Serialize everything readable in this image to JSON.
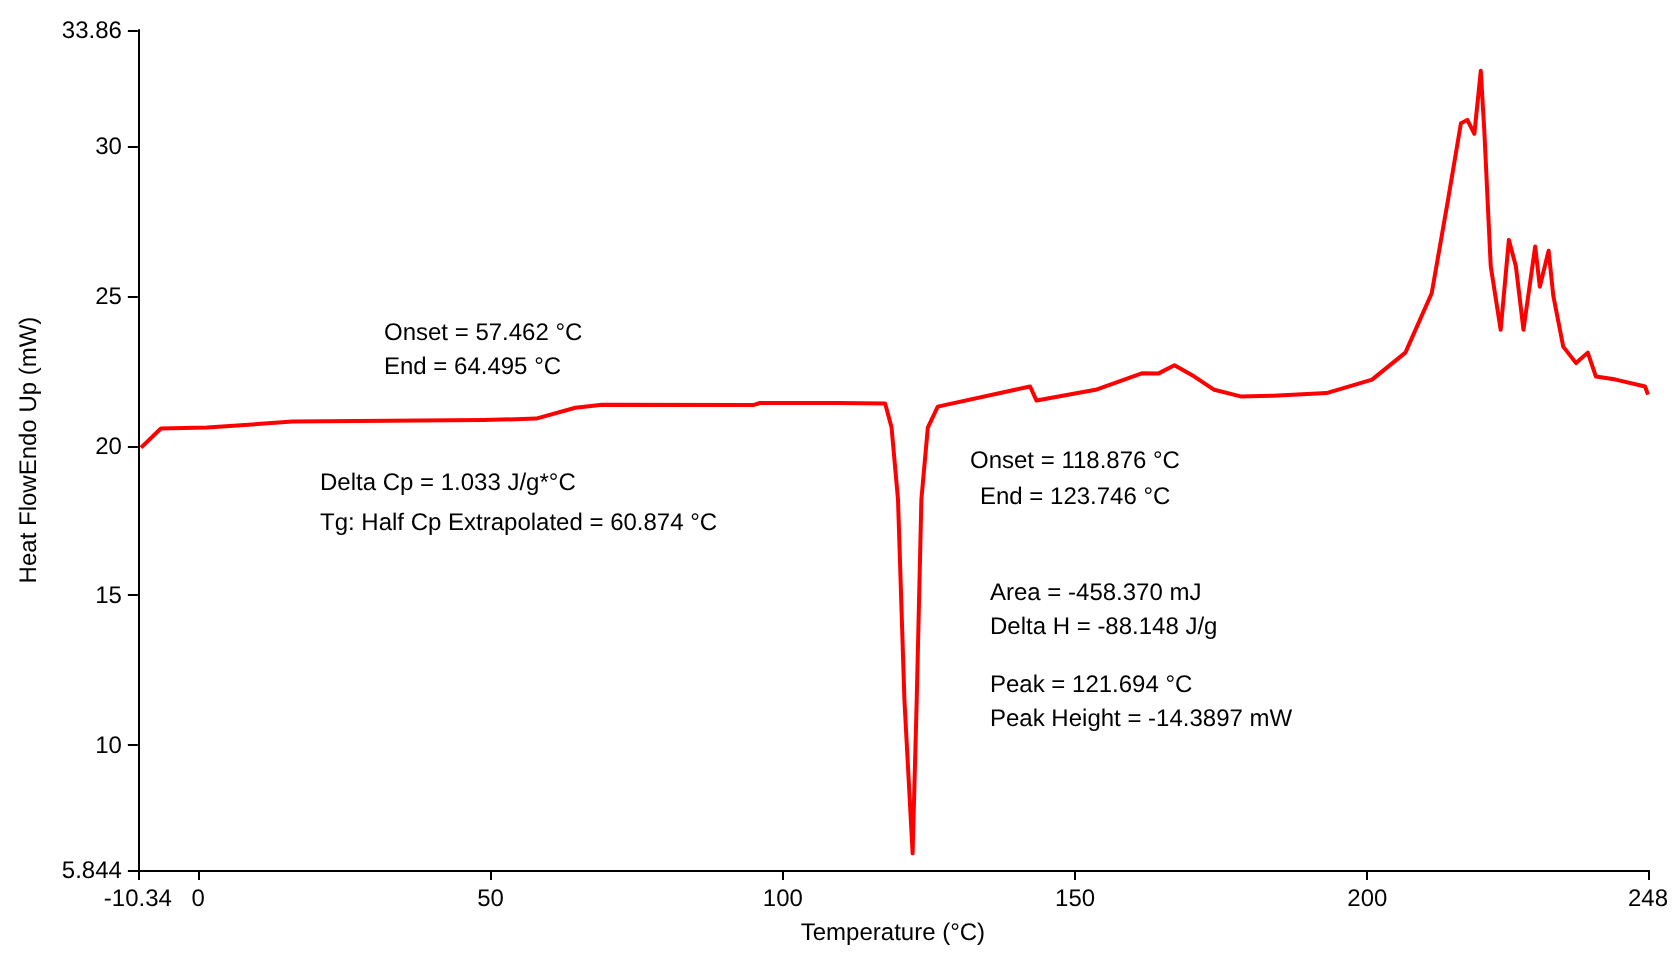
{
  "chart_data": {
    "type": "line",
    "xlabel": "Temperature (°C)",
    "ylabel": "Heat FlowEndo Up (mW)",
    "xlim": [
      -10.34,
      248
    ],
    "xticks": [
      -10.34,
      0,
      50,
      100,
      150,
      200,
      248
    ],
    "ylim": [
      5.844,
      33.86
    ],
    "yticks": [
      5.844,
      10,
      15,
      20,
      25,
      30,
      33.86
    ],
    "grid": false,
    "marker": "none",
    "line_style": "solid",
    "series": [
      {
        "color": "#ff0000",
        "x": [
          -9.8,
          -6.4,
          1.5,
          16.1,
          48.8,
          57.8,
          64.5,
          69.1,
          94.9,
          96.1,
          109.6,
          117.5,
          118.6,
          119.7,
          120.8,
          122.2,
          122.9,
          123.7,
          124.8,
          126.5,
          142.3,
          143.4,
          153.5,
          161.4,
          164.2,
          167.0,
          170.4,
          173.8,
          178.3,
          183.9,
          193.0,
          200.8,
          206.5,
          211.0,
          213.8,
          216.0,
          217.1,
          218.3,
          219.4,
          220.0,
          221.1,
          222.8,
          224.2,
          225.4,
          226.7,
          228.7,
          229.5,
          231.0,
          231.8,
          233.5,
          235.7,
          237.7,
          239.1,
          242.5,
          247.5,
          248
        ],
        "values": [
          19.93,
          20.57,
          20.6,
          20.8,
          20.85,
          20.9,
          21.26,
          21.36,
          21.35,
          21.42,
          21.42,
          21.4,
          20.6,
          18.2,
          11.5,
          6.4,
          11.5,
          18.2,
          20.6,
          21.3,
          21.97,
          21.5,
          21.86,
          22.41,
          22.4,
          22.68,
          22.3,
          21.86,
          21.64,
          21.66,
          21.75,
          22.2,
          23.1,
          25.08,
          28.2,
          30.75,
          30.86,
          30.4,
          32.5,
          30.5,
          25.98,
          23.86,
          26.86,
          25.98,
          23.86,
          26.64,
          25.3,
          26.5,
          25.0,
          23.3,
          22.75,
          23.1,
          22.3,
          22.2,
          21.97,
          21.7
        ]
      }
    ],
    "annotations": [
      "Onset = 57.462 °C",
      "End = 64.495 °C",
      "Delta Cp = 1.033 J/g*°C",
      "Tg: Half Cp Extrapolated = 60.874 °C",
      "Onset = 118.876 °C",
      "End = 123.746 °C",
      "Area = -458.370 mJ",
      "Delta H = -88.148 J/g",
      "Peak = 121.694 °C",
      "Peak Height = -14.3897 mW"
    ]
  }
}
